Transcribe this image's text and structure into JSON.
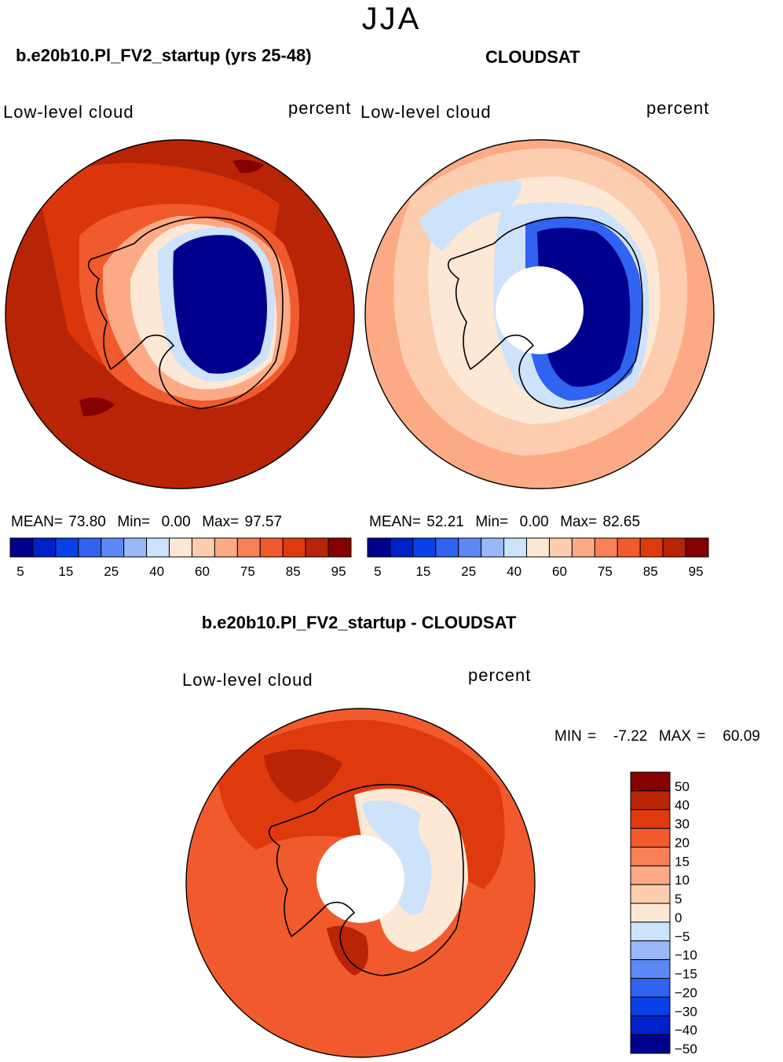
{
  "season_title": "JJA",
  "panels": [
    {
      "title": "b.e20b10.Pl_FV2_startup (yrs 25-48)",
      "variable_label": "Low-level cloud",
      "units_label": "percent",
      "stats": {
        "mean_label": "MEAN=",
        "mean": "73.80",
        "min_label": "Min=",
        "min": "0.00",
        "max_label": "Max=",
        "max": "97.57"
      }
    },
    {
      "title": "CLOUDSAT",
      "variable_label": "Low-level cloud",
      "units_label": "percent",
      "stats": {
        "mean_label": "MEAN=",
        "mean": "52.21",
        "min_label": "Min=",
        "min": "0.00",
        "max_label": "Max=",
        "max": "82.65"
      }
    },
    {
      "title": "b.e20b10.Pl_FV2_startup - CLOUDSAT",
      "variable_label": "Low-level cloud",
      "units_label": "percent",
      "stats_text": "MIN =   -7.22  MAX =   60.09"
    }
  ],
  "colorbar": {
    "colors": [
      "#00008f",
      "#0020c8",
      "#0a40e8",
      "#2f63f0",
      "#5b88f5",
      "#9ab8f8",
      "#cde2fb",
      "#fde8d6",
      "#fdcdb0",
      "#fcaa85",
      "#f88057",
      "#f05a2d",
      "#de3a0e",
      "#b82406",
      "#850000"
    ],
    "tick_labels": [
      "5",
      "15",
      "25",
      "40",
      "60",
      "75",
      "85",
      "95"
    ]
  },
  "diff_colorbar": {
    "colors": [
      "#850000",
      "#b82406",
      "#de3a0e",
      "#f05a2d",
      "#f88057",
      "#fcaa85",
      "#fdcdb0",
      "#fde8d6",
      "#cde2fb",
      "#9ab8f8",
      "#5b88f5",
      "#2f63f0",
      "#0a40e8",
      "#0020c8",
      "#00008f"
    ],
    "tick_labels": [
      "50",
      "40",
      "30",
      "20",
      "15",
      "10",
      "5",
      "0",
      "−5",
      "−10",
      "−15",
      "−20",
      "−30",
      "−40",
      "−50"
    ]
  },
  "map_colors": {
    "ocean_model": "#b82406",
    "ocean_model_mid": "#de3a0e",
    "ocean_obs": "#fdcdb0",
    "ocean_obs_mid": "#fcaa85",
    "land_blue": "#00008f",
    "diff_ocean": "#de3a0e",
    "diff_mid": "#f05a2d"
  }
}
